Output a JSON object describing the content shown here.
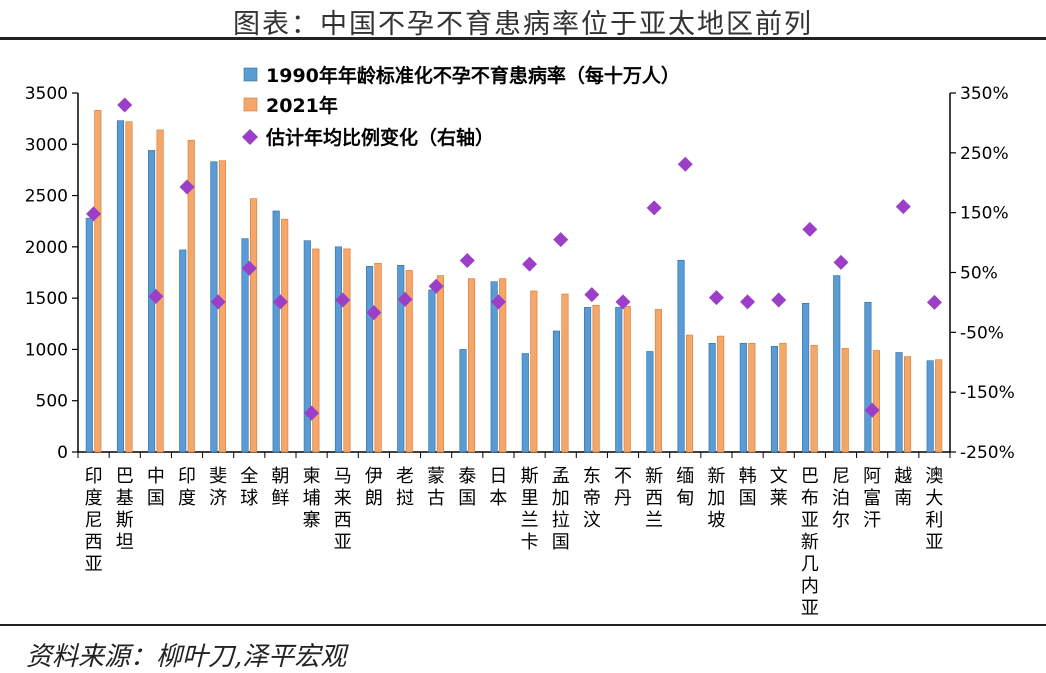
{
  "title": "图表：中国不孕不育患病率位于亚太地区前列",
  "source": "资料来源：柳叶刀,泽平宏观",
  "colors": {
    "bar1990": "#5b9bd5",
    "bar1990_edge": "#2e6e9e",
    "bar2021": "#f4a76b",
    "bar2021_edge": "#d9772f",
    "marker": "#9b3fc8",
    "axis": "#000000"
  },
  "chart_data": {
    "type": "bar",
    "categories": [
      "印度尼西亚",
      "巴基斯坦",
      "中国",
      "印度",
      "斐济",
      "全球",
      "朝鲜",
      "柬埔寨",
      "马来西亚",
      "伊朗",
      "老挝",
      "蒙古",
      "泰国",
      "日本",
      "斯里兰卡",
      "孟加拉国",
      "东帝汶",
      "不丹",
      "新西兰",
      "缅甸",
      "新加坡",
      "韩国",
      "文莱",
      "巴布亚新几内亚",
      "尼泊尔",
      "阿富汗",
      "越南",
      "澳大利亚"
    ],
    "series": [
      {
        "name": "1990年年龄标准化不孕不育患病率（每十万人）",
        "kind": "bar",
        "axis": "left",
        "values": [
          2280,
          3230,
          2940,
          1970,
          2830,
          2080,
          2350,
          2060,
          2000,
          1810,
          1820,
          1580,
          1000,
          1660,
          960,
          1180,
          1410,
          1410,
          980,
          1870,
          1060,
          1060,
          1030,
          1450,
          1720,
          1460,
          970,
          890
        ]
      },
      {
        "name": "2021年",
        "kind": "bar",
        "axis": "left",
        "values": [
          3330,
          3220,
          3140,
          3040,
          2840,
          2470,
          2270,
          1980,
          1980,
          1840,
          1770,
          1720,
          1690,
          1690,
          1570,
          1540,
          1430,
          1420,
          1390,
          1140,
          1130,
          1060,
          1060,
          1040,
          1010,
          990,
          930,
          900
        ]
      },
      {
        "name": "估计年均比例变化（右轴）",
        "kind": "scatter",
        "axis": "right",
        "values": [
          1.48,
          3.3,
          0.1,
          1.93,
          0.01,
          0.57,
          0.01,
          -1.85,
          0.04,
          -0.17,
          0.05,
          0.27,
          0.7,
          0.01,
          0.64,
          1.05,
          0.13,
          0.01,
          1.58,
          2.31,
          0.08,
          0.01,
          0.04,
          1.22,
          0.67,
          -1.8,
          1.6,
          0.0
        ]
      }
    ],
    "title": "中国不孕不育患病率位于亚太地区前列",
    "xlabel": "",
    "ylabel": "",
    "y2label": "",
    "ylim": [
      0,
      3500
    ],
    "yticks": [
      0,
      500,
      1000,
      1500,
      2000,
      2500,
      3000,
      3500
    ],
    "ytick_labels": [
      "0",
      "500",
      "1000",
      "1500",
      "2000",
      "2500",
      "3000",
      "3500"
    ],
    "y2lim": [
      -2.5,
      3.5
    ],
    "y2ticks": [
      -2.5,
      -1.5,
      -0.5,
      0.5,
      1.5,
      2.5,
      3.5
    ],
    "y2tick_labels": [
      "-250%",
      "-150%",
      "-50%",
      "50%",
      "150%",
      "250%",
      "350%"
    ],
    "legend_position": "top-center",
    "grid": false
  }
}
